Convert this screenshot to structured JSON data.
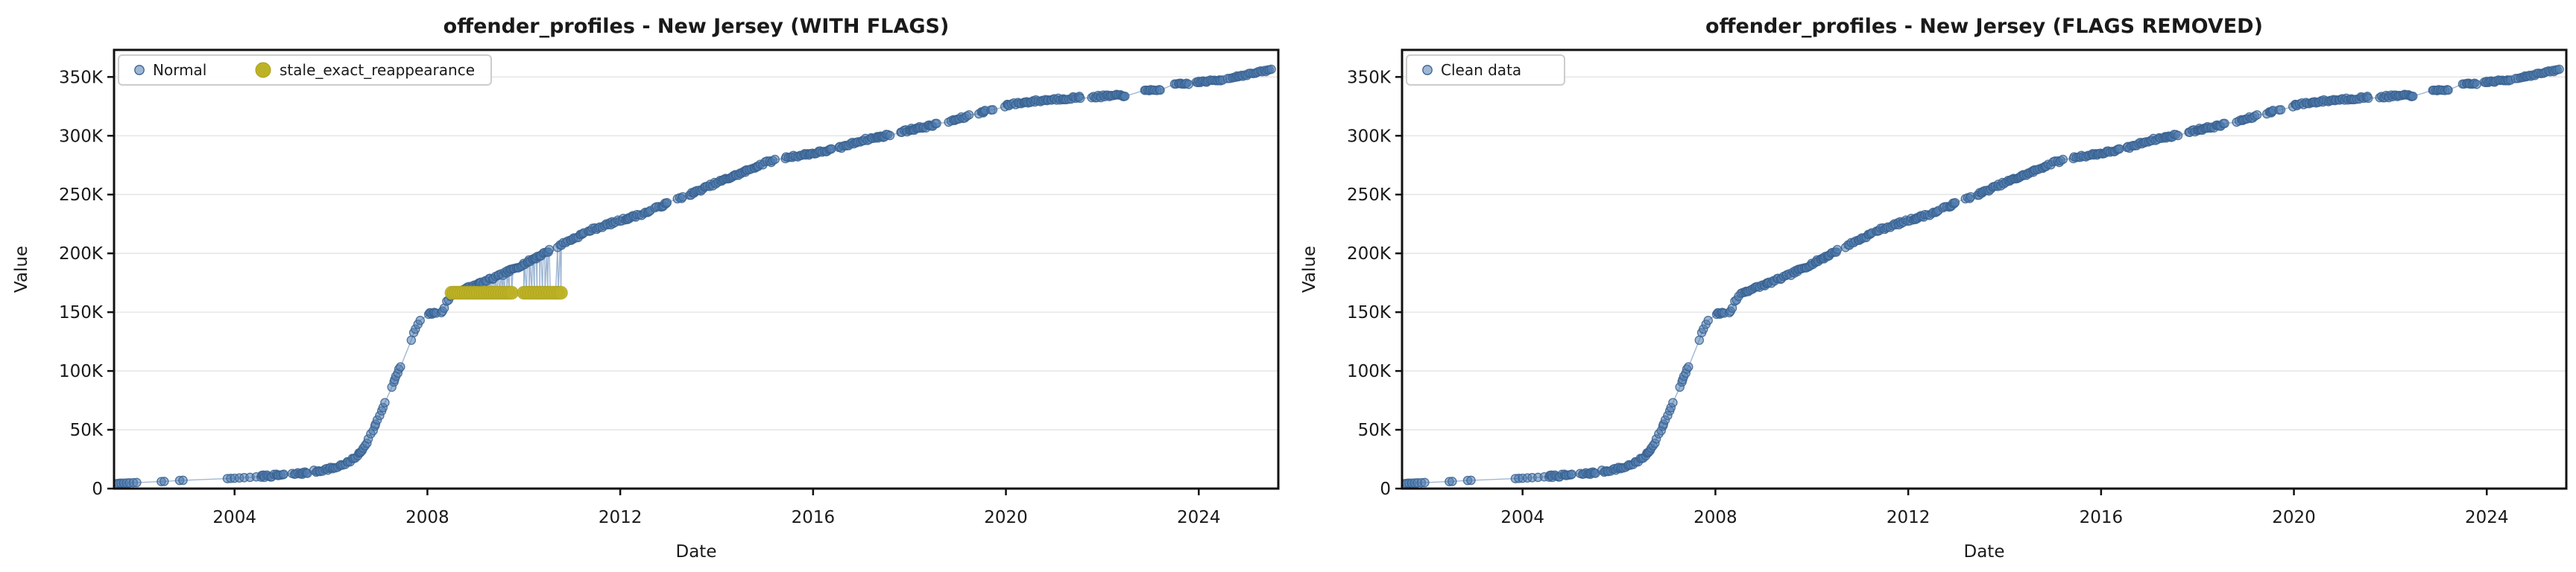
{
  "figure": {
    "background": "#ffffff",
    "grid_color": "#e7e7e7",
    "spine_color": "#111111",
    "line_color": "#7f9fc6",
    "normal_point_fill": "#4f7cb0",
    "normal_point_edge": "#39618e",
    "stale_point_fill": "#bdb226",
    "stale_point_edge": "#a99f1c"
  },
  "chart_data": [
    {
      "type": "scatter",
      "title": "offender_profiles - New Jersey (WITH FLAGS)",
      "xlabel": "Date",
      "ylabel": "Value",
      "xlim": [
        2001.5,
        2025.65
      ],
      "ylim_valueK": [
        0,
        373
      ],
      "x_ticks": [
        2004,
        2008,
        2012,
        2016,
        2020,
        2024
      ],
      "y_ticks_valueK": [
        0,
        50,
        100,
        150,
        200,
        250,
        300,
        350
      ],
      "y_tick_labels": [
        "0",
        "50K",
        "100K",
        "150K",
        "200K",
        "250K",
        "300K",
        "350K"
      ],
      "grid": "horizontal",
      "legend_position": "upper-left",
      "series": [
        {
          "name": "Normal",
          "marker_color": "#4f7cb0",
          "trend_anchors_year_valueK": [
            [
              2001.5,
              4
            ],
            [
              2001.62,
              4.5
            ],
            [
              2001.9,
              5
            ],
            [
              2002.5,
              6
            ],
            [
              2002.9,
              7
            ],
            [
              2003.85,
              8.5
            ],
            [
              2004.3,
              9.5
            ],
            [
              2004.6,
              10.5
            ],
            [
              2005.0,
              11.5
            ],
            [
              2005.4,
              13
            ],
            [
              2005.8,
              15.5
            ],
            [
              2006.1,
              18
            ],
            [
              2006.4,
              23
            ],
            [
              2006.6,
              30
            ],
            [
              2006.75,
              40
            ],
            [
              2006.9,
              52
            ],
            [
              2007.05,
              66
            ],
            [
              2007.2,
              80
            ],
            [
              2007.35,
              95
            ],
            [
              2007.5,
              110
            ],
            [
              2007.65,
              125
            ],
            [
              2007.8,
              140
            ],
            [
              2007.9,
              148
            ],
            [
              2008.3,
              150
            ],
            [
              2008.42,
              160
            ],
            [
              2008.55,
              166.5
            ],
            [
              2009.0,
              173
            ],
            [
              2009.5,
              181
            ],
            [
              2010.0,
              191
            ],
            [
              2010.7,
              206
            ],
            [
              2011.4,
              220
            ],
            [
              2012.0,
              228
            ],
            [
              2012.5,
              234
            ],
            [
              2013.0,
              243
            ],
            [
              2013.5,
              251
            ],
            [
              2014.0,
              260
            ],
            [
              2014.5,
              268
            ],
            [
              2015.0,
              277
            ],
            [
              2015.5,
              282
            ],
            [
              2016.0,
              285
            ],
            [
              2016.5,
              289
            ],
            [
              2017.0,
              296
            ],
            [
              2017.5,
              300
            ],
            [
              2018.0,
              305
            ],
            [
              2018.5,
              309
            ],
            [
              2019.0,
              314
            ],
            [
              2019.5,
              320
            ],
            [
              2020.0,
              326
            ],
            [
              2020.5,
              329
            ],
            [
              2021.0,
              331
            ],
            [
              2021.5,
              332.5
            ],
            [
              2022.0,
              333.5
            ],
            [
              2022.5,
              334.5
            ],
            [
              2022.88,
              338
            ],
            [
              2023.22,
              339.5
            ],
            [
              2023.5,
              343.5
            ],
            [
              2023.82,
              344.5
            ],
            [
              2023.95,
              345.5
            ],
            [
              2024.5,
              347.5
            ],
            [
              2024.6,
              349
            ],
            [
              2025.0,
              352
            ],
            [
              2025.3,
              354.5
            ],
            [
              2025.55,
              356.5
            ]
          ],
          "sampling": {
            "sparse_dates": [
              2001.55,
              2001.6,
              2001.64,
              2001.7,
              2001.76,
              2001.82,
              2001.9,
              2001.97,
              2002.48,
              2002.54,
              2002.86,
              2002.93,
              2003.85,
              2003.92,
              2004.0,
              2004.1,
              2004.2,
              2004.32,
              2004.45
            ],
            "dense_range": [
              2004.55,
              2022.5
            ],
            "late_clusters": [
              [
                2022.88,
                2023.22
              ],
              [
                2023.5,
                2023.82
              ],
              [
                2023.95,
                2024.5
              ],
              [
                2024.6,
                2025.55
              ]
            ]
          }
        },
        {
          "name": "stale_exact_reappearance",
          "marker_color": "#bdb226",
          "stale_valueK": 166.5,
          "date_clusters": [
            {
              "start": 2008.5,
              "end": 2009.78,
              "step": 0.05
            },
            {
              "start": 2010.0,
              "end": 2010.78,
              "step": 0.055
            }
          ]
        }
      ]
    },
    {
      "type": "scatter",
      "title": "offender_profiles - New Jersey (FLAGS REMOVED)",
      "xlabel": "Date",
      "ylabel": "Value",
      "xlim": [
        2001.5,
        2025.65
      ],
      "ylim_valueK": [
        0,
        373
      ],
      "x_ticks": [
        2004,
        2008,
        2012,
        2016,
        2020,
        2024
      ],
      "y_ticks_valueK": [
        0,
        50,
        100,
        150,
        200,
        250,
        300,
        350
      ],
      "y_tick_labels": [
        "0",
        "50K",
        "100K",
        "150K",
        "200K",
        "250K",
        "300K",
        "350K"
      ],
      "grid": "horizontal",
      "legend_position": "upper-left",
      "series": [
        {
          "name": "Clean data",
          "marker_color": "#4f7cb0",
          "note": "same Normal curve as left chart with flagged stale points removed",
          "trend_anchors_year_valueK": [
            [
              2001.5,
              4
            ],
            [
              2001.62,
              4.5
            ],
            [
              2001.9,
              5
            ],
            [
              2002.5,
              6
            ],
            [
              2002.9,
              7
            ],
            [
              2003.85,
              8.5
            ],
            [
              2004.3,
              9.5
            ],
            [
              2004.6,
              10.5
            ],
            [
              2005.0,
              11.5
            ],
            [
              2005.4,
              13
            ],
            [
              2005.8,
              15.5
            ],
            [
              2006.1,
              18
            ],
            [
              2006.4,
              23
            ],
            [
              2006.6,
              30
            ],
            [
              2006.75,
              40
            ],
            [
              2006.9,
              52
            ],
            [
              2007.05,
              66
            ],
            [
              2007.2,
              80
            ],
            [
              2007.35,
              95
            ],
            [
              2007.5,
              110
            ],
            [
              2007.65,
              125
            ],
            [
              2007.8,
              140
            ],
            [
              2007.9,
              148
            ],
            [
              2008.3,
              150
            ],
            [
              2008.42,
              160
            ],
            [
              2008.55,
              166.5
            ],
            [
              2009.0,
              173
            ],
            [
              2009.5,
              181
            ],
            [
              2010.0,
              191
            ],
            [
              2010.7,
              206
            ],
            [
              2011.4,
              220
            ],
            [
              2012.0,
              228
            ],
            [
              2012.5,
              234
            ],
            [
              2013.0,
              243
            ],
            [
              2013.5,
              251
            ],
            [
              2014.0,
              260
            ],
            [
              2014.5,
              268
            ],
            [
              2015.0,
              277
            ],
            [
              2015.5,
              282
            ],
            [
              2016.0,
              285
            ],
            [
              2016.5,
              289
            ],
            [
              2017.0,
              296
            ],
            [
              2017.5,
              300
            ],
            [
              2018.0,
              305
            ],
            [
              2018.5,
              309
            ],
            [
              2019.0,
              314
            ],
            [
              2019.5,
              320
            ],
            [
              2020.0,
              326
            ],
            [
              2020.5,
              329
            ],
            [
              2021.0,
              331
            ],
            [
              2021.5,
              332.5
            ],
            [
              2022.0,
              333.5
            ],
            [
              2022.5,
              334.5
            ],
            [
              2022.88,
              338
            ],
            [
              2023.22,
              339.5
            ],
            [
              2023.5,
              343.5
            ],
            [
              2023.82,
              344.5
            ],
            [
              2023.95,
              345.5
            ],
            [
              2024.5,
              347.5
            ],
            [
              2024.6,
              349
            ],
            [
              2025.0,
              352
            ],
            [
              2025.3,
              354.5
            ],
            [
              2025.55,
              356.5
            ]
          ]
        }
      ]
    }
  ]
}
